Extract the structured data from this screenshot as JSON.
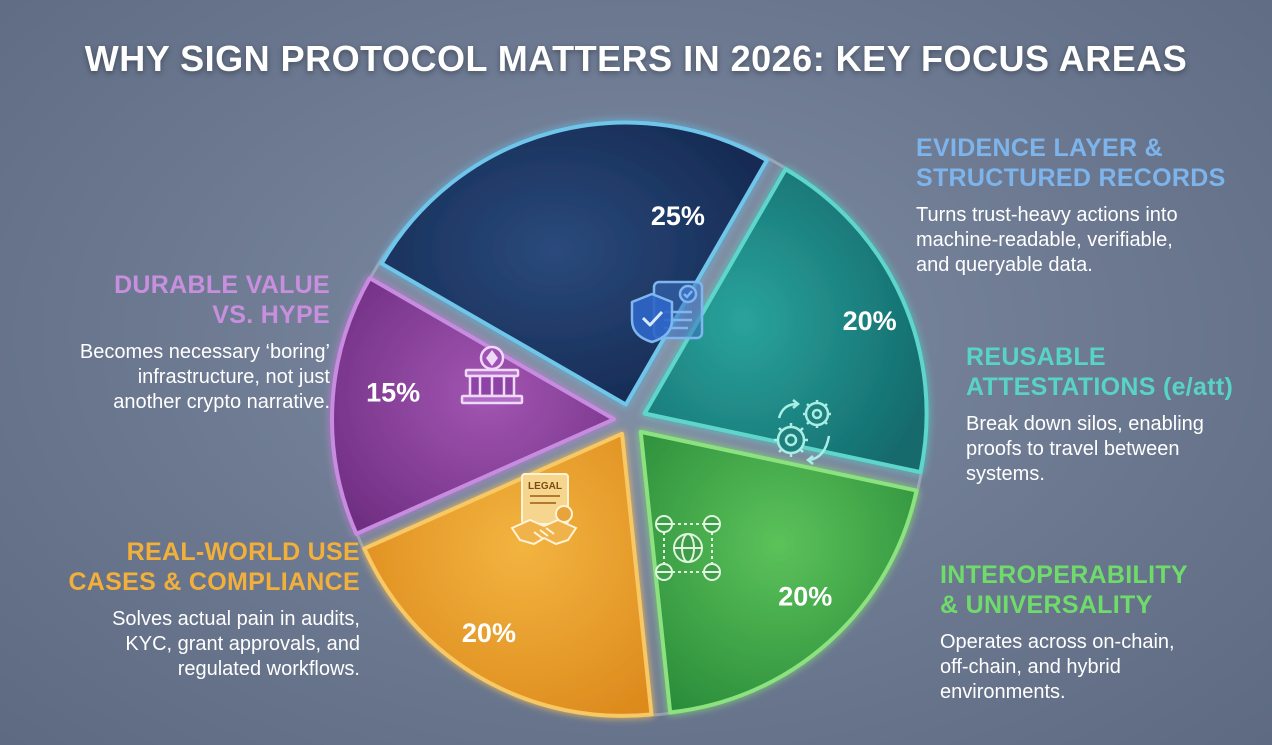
{
  "title": "WHY SIGN PROTOCOL MATTERS IN 2026: KEY FOCUS AREAS",
  "chart_data": {
    "type": "pie",
    "title": "WHY SIGN PROTOCOL MATTERS IN 2026: KEY FOCUS AREAS",
    "slices": [
      {
        "label": "EVIDENCE LAYER & STRUCTURED RECORDS",
        "value": 25,
        "value_label": "25%",
        "color": "#1c3461",
        "icon": "shield-document-icon"
      },
      {
        "label": "REUSABLE ATTESTATIONS (e/att)",
        "value": 20,
        "value_label": "20%",
        "color": "#1e8a86",
        "icon": "gears-icon"
      },
      {
        "label": "INTEROPERABILITY & UNIVERSALITY",
        "value": 20,
        "value_label": "20%",
        "color": "#3ea84c",
        "icon": "connected-globes-icon"
      },
      {
        "label": "REAL-WORLD USE CASES & COMPLIANCE",
        "value": 20,
        "value_label": "20%",
        "color": "#e59a28",
        "icon": "legal-handshake-icon"
      },
      {
        "label": "DURABLE VALUE VS. HYPE",
        "value": 15,
        "value_label": "15%",
        "color": "#8a3d9c",
        "icon": "crypto-pedestal-icon"
      }
    ]
  },
  "callouts": {
    "evidence": {
      "heading": [
        "EVIDENCE LAYER &",
        "STRUCTURED RECORDS"
      ],
      "desc": [
        "Turns trust-heavy actions into",
        "machine-readable, verifiable,",
        "and queryable data."
      ],
      "color": "#7db4ec"
    },
    "attestations": {
      "heading": [
        "REUSABLE",
        "ATTESTATIONS (e/att)"
      ],
      "desc": [
        "Break down silos, enabling",
        "proofs to travel between",
        "systems."
      ],
      "color": "#58d3c8"
    },
    "interop": {
      "heading": [
        "INTEROPERABILITY",
        "& UNIVERSALITY"
      ],
      "desc": [
        "Operates across on-chain,",
        "off-chain, and hybrid",
        "environments."
      ],
      "color": "#6fdc6a"
    },
    "realworld": {
      "heading": [
        "REAL-WORLD USE",
        "CASES & COMPLIANCE"
      ],
      "desc": [
        "Solves actual pain in audits,",
        "KYC, grant approvals, and",
        "regulated workflows."
      ],
      "color": "#f2b03a"
    },
    "durable": {
      "heading": [
        "DURABLE VALUE",
        "VS. HYPE"
      ],
      "desc": [
        "Becomes necessary ‘boring’",
        "infrastructure, not just",
        "another crypto narrative."
      ],
      "color": "#c98fdf"
    }
  },
  "icons": {
    "legal_text": "LEGAL"
  }
}
